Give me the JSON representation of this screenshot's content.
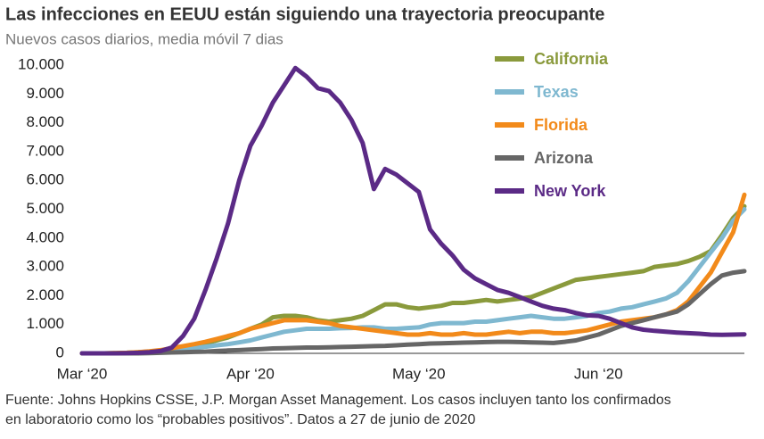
{
  "chart_data": {
    "type": "line",
    "title": "Las infecciones en EEUU están siguiendo una trayectoria preocupante",
    "subtitle": "Nuevos casos diarios, media móvil 7 dias",
    "footnote": "Fuente: Johns Hopkins CSSE, J.P. Morgan Asset Management. Los casos incluyen tanto los confirmados en laboratorio como los “probables positivos”. Datos a 27 de junio de 2020",
    "legend": "top-right",
    "categories": [
      "Mar ‘20",
      null,
      null,
      null,
      null,
      null,
      null,
      null,
      null,
      null,
      null,
      null,
      null,
      null,
      null,
      "Apr ‘20",
      null,
      null,
      null,
      null,
      null,
      null,
      null,
      null,
      null,
      null,
      null,
      null,
      null,
      null,
      "May ‘20",
      null,
      null,
      null,
      null,
      null,
      null,
      null,
      null,
      null,
      null,
      null,
      null,
      null,
      null,
      null,
      "Jun ‘20",
      null,
      null,
      null,
      null,
      null,
      null,
      null,
      null,
      null,
      null,
      null,
      null,
      null
    ],
    "ylim": [
      0,
      10000
    ],
    "yticks": [
      0,
      {
        "value": 1000,
        "label": "1.000"
      },
      {
        "value": 2000,
        "label": "2.000"
      },
      {
        "value": 3000,
        "label": "3.000"
      },
      {
        "value": 4000,
        "label": "4.000"
      },
      {
        "value": 5000,
        "label": "5.000"
      },
      {
        "value": 6000,
        "label": "6.000"
      },
      {
        "value": 7000,
        "label": "7.000"
      },
      {
        "value": 8000,
        "label": "8.000"
      },
      {
        "value": 9000,
        "label": "9.000"
      },
      {
        "value": 10000,
        "label": "10.000"
      }
    ],
    "series": [
      {
        "name": "California",
        "color": "#8a9a3c",
        "values": [
          0,
          0,
          0,
          10,
          20,
          40,
          60,
          100,
          150,
          200,
          250,
          350,
          450,
          550,
          700,
          850,
          1000,
          1250,
          1300,
          1300,
          1250,
          1150,
          1100,
          1150,
          1200,
          1300,
          1500,
          1700,
          1700,
          1600,
          1550,
          1600,
          1650,
          1750,
          1750,
          1800,
          1850,
          1800,
          1850,
          1900,
          1950,
          2100,
          2250,
          2400,
          2550,
          2600,
          2650,
          2700,
          2750,
          2800,
          2850,
          3000,
          3050,
          3100,
          3200,
          3350,
          3550,
          4100,
          4700,
          5100
        ]
      },
      {
        "name": "Texas",
        "color": "#7fb8d0",
        "values": [
          0,
          0,
          0,
          0,
          10,
          20,
          30,
          50,
          80,
          120,
          180,
          230,
          280,
          320,
          380,
          450,
          550,
          650,
          750,
          800,
          850,
          850,
          850,
          870,
          880,
          900,
          900,
          850,
          850,
          880,
          900,
          1000,
          1050,
          1050,
          1050,
          1100,
          1100,
          1150,
          1200,
          1250,
          1300,
          1250,
          1200,
          1200,
          1250,
          1300,
          1400,
          1450,
          1550,
          1600,
          1700,
          1800,
          1900,
          2100,
          2500,
          3000,
          3500,
          4000,
          4600,
          5000
        ]
      },
      {
        "name": "Florida",
        "color": "#f28a1a",
        "values": [
          0,
          0,
          0,
          10,
          20,
          40,
          70,
          110,
          180,
          250,
          320,
          400,
          500,
          600,
          700,
          850,
          950,
          1050,
          1150,
          1150,
          1150,
          1100,
          1050,
          950,
          900,
          850,
          800,
          750,
          700,
          650,
          650,
          700,
          650,
          650,
          700,
          650,
          650,
          700,
          750,
          700,
          750,
          750,
          700,
          700,
          750,
          800,
          900,
          1000,
          1100,
          1150,
          1200,
          1250,
          1350,
          1500,
          1800,
          2300,
          2800,
          3500,
          4200,
          5500
        ]
      },
      {
        "name": "Arizona",
        "color": "#666666",
        "values": [
          0,
          0,
          0,
          0,
          0,
          0,
          10,
          20,
          30,
          40,
          50,
          60,
          80,
          100,
          110,
          130,
          150,
          170,
          180,
          190,
          200,
          200,
          210,
          220,
          230,
          240,
          250,
          260,
          280,
          300,
          320,
          340,
          350,
          360,
          370,
          380,
          390,
          400,
          400,
          390,
          380,
          370,
          360,
          400,
          450,
          550,
          650,
          800,
          950,
          1050,
          1150,
          1250,
          1350,
          1450,
          1700,
          2050,
          2400,
          2700,
          2800,
          2850
        ]
      },
      {
        "name": "New York",
        "color": "#5b2a86",
        "values": [
          0,
          0,
          0,
          0,
          10,
          20,
          40,
          80,
          200,
          600,
          1200,
          2200,
          3300,
          4500,
          6000,
          7200,
          7900,
          8700,
          9300,
          9900,
          9600,
          9200,
          9100,
          8700,
          8100,
          7300,
          5700,
          6400,
          6200,
          5900,
          5600,
          4300,
          3800,
          3400,
          2900,
          2600,
          2400,
          2200,
          2100,
          1950,
          1800,
          1650,
          1550,
          1500,
          1400,
          1320,
          1300,
          1200,
          1050,
          900,
          820,
          780,
          750,
          720,
          700,
          680,
          650,
          640,
          650,
          660
        ]
      }
    ]
  }
}
